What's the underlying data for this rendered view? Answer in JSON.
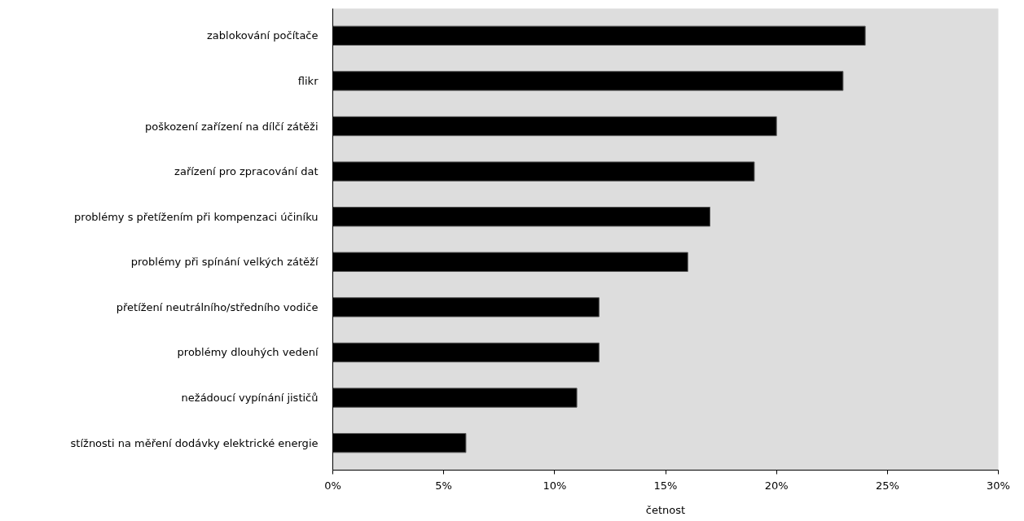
{
  "chart_data": {
    "type": "bar",
    "orientation": "horizontal",
    "xlabel": "četnost",
    "categories": [
      "zablokování počítače",
      "flikr",
      "poškození zařízení na dílčí zátěži",
      "zařízení pro zpracování dat",
      "problémy s přetížením při kompenzaci účiníku",
      "problémy při spínání velkých zátěží",
      "přetížení neutrálního/středního vodiče",
      "problémy dlouhých vedení",
      "nežádoucí vypínání jističů",
      "stížnosti na měření dodávky elektrické energie"
    ],
    "values": [
      24,
      23,
      20,
      19,
      17,
      16,
      12,
      12,
      11,
      6
    ],
    "color": "#000000",
    "xlim": [
      0,
      30
    ],
    "xticks": [
      {
        "value": 0,
        "label": "0%"
      },
      {
        "value": 5,
        "label": "5%"
      },
      {
        "value": 10,
        "label": "10%"
      },
      {
        "value": 15,
        "label": "15%"
      },
      {
        "value": 20,
        "label": "20%"
      },
      {
        "value": 25,
        "label": "25%"
      },
      {
        "value": 30,
        "label": "30%"
      }
    ],
    "grid": false
  }
}
